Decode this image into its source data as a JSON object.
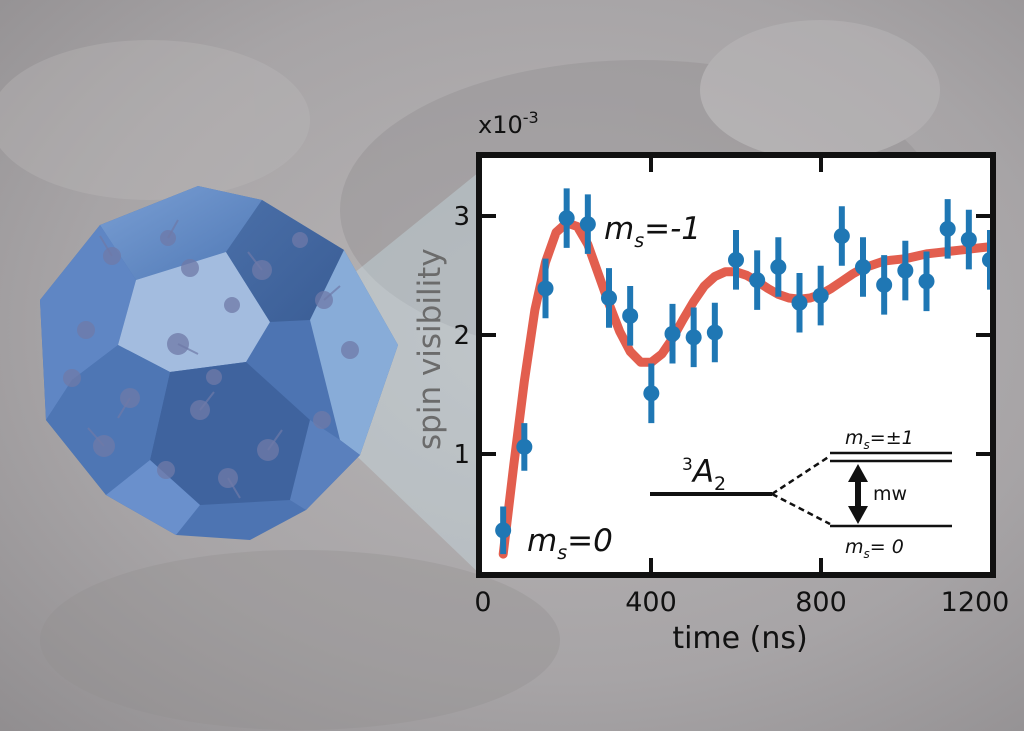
{
  "chart_data": {
    "type": "scatter",
    "title": "",
    "xlabel": "time (ns)",
    "ylabel": "spin visibility",
    "y_multiplier_label": "x10",
    "y_multiplier_exp": "-3",
    "xlim": [
      0,
      1200
    ],
    "ylim": [
      0,
      3.5
    ],
    "xticks": [
      "0",
      "400",
      "800",
      "1200"
    ],
    "yticks": [
      "1",
      "2",
      "3"
    ],
    "series": [
      {
        "kind": "points_with_error",
        "color": "#1f77b4",
        "x": [
          50,
          100,
          150,
          200,
          250,
          300,
          350,
          400,
          450,
          500,
          550,
          600,
          650,
          700,
          750,
          800,
          850,
          900,
          950,
          1000,
          1050,
          1100,
          1150,
          1200
        ],
        "y": [
          0.35,
          1.05,
          2.38,
          2.97,
          2.92,
          2.3,
          2.15,
          1.5,
          2.0,
          1.97,
          2.01,
          2.62,
          2.45,
          2.56,
          2.26,
          2.32,
          2.82,
          2.56,
          2.41,
          2.53,
          2.44,
          2.88,
          2.79,
          2.62
        ],
        "err": [
          0.2,
          0.2,
          0.25,
          0.25,
          0.25,
          0.25,
          0.25,
          0.25,
          0.25,
          0.25,
          0.25,
          0.25,
          0.25,
          0.25,
          0.25,
          0.25,
          0.25,
          0.25,
          0.25,
          0.25,
          0.25,
          0.25,
          0.25,
          0.25
        ]
      },
      {
        "kind": "fit_line",
        "color": "#e0503f",
        "x": [
          50,
          75,
          100,
          125,
          150,
          175,
          200,
          225,
          250,
          275,
          300,
          325,
          350,
          375,
          400,
          425,
          450,
          475,
          500,
          525,
          550,
          575,
          600,
          625,
          650,
          675,
          700,
          725,
          750,
          775,
          800,
          825,
          850,
          875,
          900,
          925,
          950,
          975,
          1000,
          1025,
          1050,
          1075,
          1100,
          1125,
          1150,
          1175,
          1200
        ],
        "y": [
          0.15,
          0.9,
          1.6,
          2.2,
          2.6,
          2.85,
          2.93,
          2.9,
          2.75,
          2.5,
          2.25,
          2.02,
          1.85,
          1.76,
          1.76,
          1.83,
          1.96,
          2.12,
          2.27,
          2.4,
          2.48,
          2.52,
          2.52,
          2.49,
          2.44,
          2.38,
          2.33,
          2.3,
          2.29,
          2.3,
          2.33,
          2.38,
          2.44,
          2.5,
          2.55,
          2.58,
          2.61,
          2.62,
          2.63,
          2.65,
          2.67,
          2.68,
          2.69,
          2.7,
          2.71,
          2.72,
          2.73
        ]
      }
    ],
    "annotations": {
      "ms_minus1": "=-1",
      "ms_zero": "=0",
      "ms_prefix": "m",
      "ms_sub": "s",
      "level_sup": "3",
      "level_name": "A",
      "level_sub": "2",
      "upper_level": "=±1",
      "lower_level": "= 0",
      "mw_label": "mw"
    },
    "grid": false
  },
  "colors": {
    "background": "#a9a6a8",
    "cube_face": "#5c84c0",
    "points": "#1f77b4",
    "fit": "#e0503f"
  }
}
